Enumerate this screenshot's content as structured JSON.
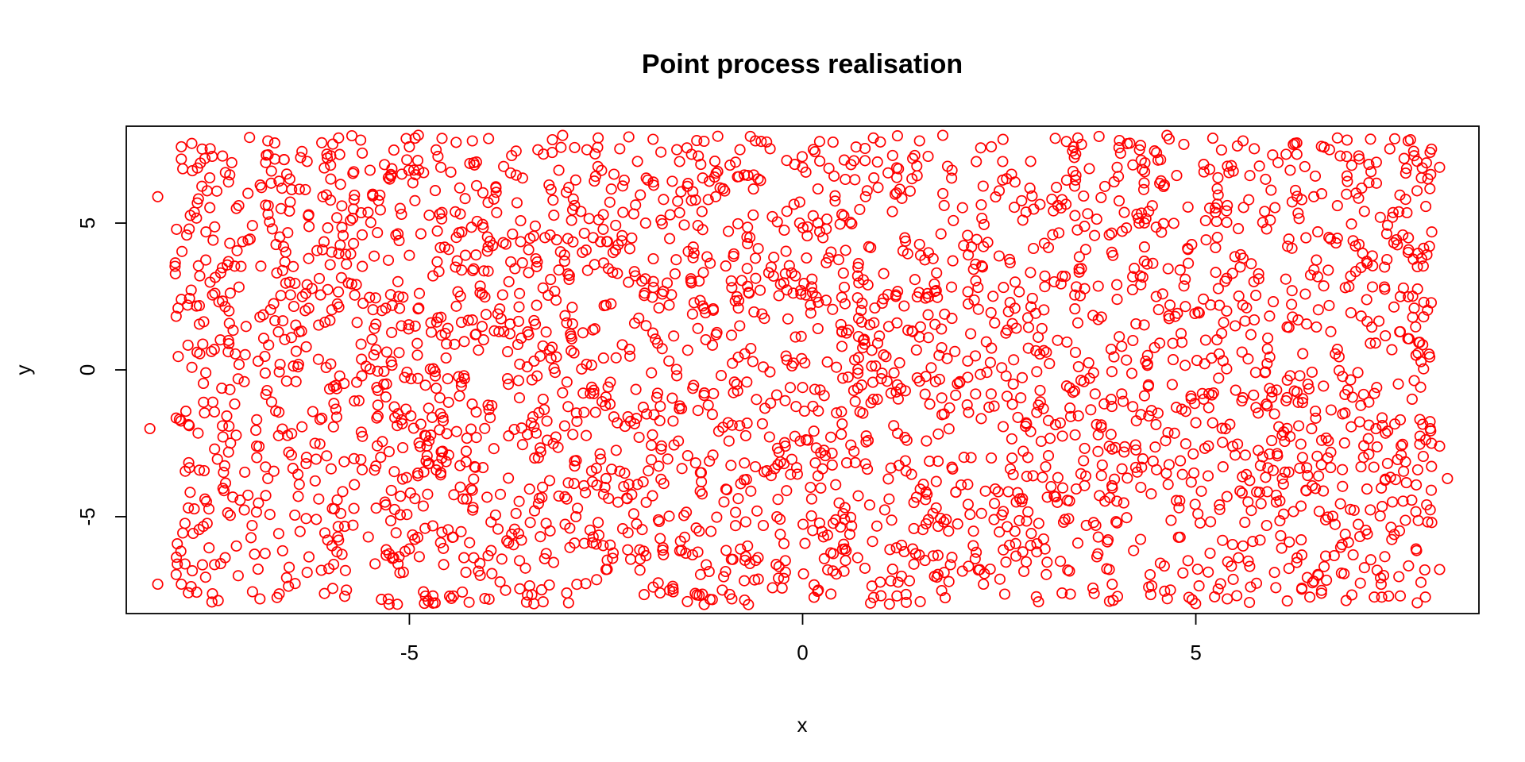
{
  "chart_data": {
    "type": "scatter",
    "title": "Point process realisation",
    "xlabel": "x",
    "ylabel": "y",
    "xlim": [
      -8.6,
      8.6
    ],
    "ylim": [
      -8.3,
      8.3
    ],
    "xticks": [
      -5,
      0,
      5
    ],
    "yticks": [
      -5,
      0,
      5
    ],
    "xtick_labels": [
      "-5",
      "0",
      "5"
    ],
    "ytick_labels": [
      "-5",
      "0",
      "5"
    ],
    "grid": false,
    "legend": "none",
    "marker": "open-circle",
    "point_color": "#ff0000",
    "domain": {
      "x": [
        -8,
        8
      ],
      "y": [
        -8,
        8
      ]
    },
    "series": [
      {
        "points": [
          [
            -7.9,
            7.6
          ],
          [
            -7.6,
            7.2
          ],
          [
            -7.3,
            6.4
          ],
          [
            -6.8,
            7.8
          ],
          [
            -6.3,
            7.1
          ],
          [
            -5.9,
            7.9
          ],
          [
            -5.5,
            6.8
          ],
          [
            -5.0,
            7.6
          ],
          [
            -4.6,
            6.9
          ],
          [
            -4.2,
            7.8
          ],
          [
            -3.7,
            7.3
          ],
          [
            -3.1,
            6.8
          ],
          [
            -2.6,
            7.9
          ],
          [
            -2.1,
            7.1
          ],
          [
            -1.6,
            7.5
          ],
          [
            -1.1,
            6.7
          ],
          [
            -0.6,
            7.8
          ],
          [
            -0.1,
            7.0
          ],
          [
            0.4,
            6.6
          ],
          [
            0.9,
            7.9
          ],
          [
            1.4,
            7.2
          ],
          [
            1.9,
            6.8
          ],
          [
            2.4,
            7.6
          ],
          [
            2.9,
            7.1
          ],
          [
            3.5,
            7.9
          ],
          [
            4.0,
            6.9
          ],
          [
            4.5,
            7.4
          ],
          [
            5.1,
            7.0
          ],
          [
            5.6,
            7.8
          ],
          [
            6.2,
            6.8
          ],
          [
            6.7,
            7.5
          ],
          [
            7.2,
            7.0
          ],
          [
            7.7,
            7.8
          ],
          [
            8.1,
            6.9
          ],
          [
            -7.8,
            4.8
          ],
          [
            -7.2,
            5.5
          ],
          [
            -6.6,
            4.2
          ],
          [
            -6.1,
            5.9
          ],
          [
            -5.6,
            4.6
          ],
          [
            -5.1,
            5.3
          ],
          [
            -4.5,
            4.1
          ],
          [
            -4.0,
            5.7
          ],
          [
            -3.4,
            4.9
          ],
          [
            -2.9,
            5.6
          ],
          [
            -2.3,
            4.4
          ],
          [
            -1.8,
            5.1
          ],
          [
            -1.2,
            5.8
          ],
          [
            -0.7,
            4.3
          ],
          [
            -0.2,
            5.4
          ],
          [
            0.3,
            4.8
          ],
          [
            0.8,
            5.9
          ],
          [
            1.3,
            4.5
          ],
          [
            1.8,
            5.6
          ],
          [
            2.3,
            4.2
          ],
          [
            2.8,
            5.1
          ],
          [
            3.3,
            5.8
          ],
          [
            3.9,
            4.6
          ],
          [
            4.4,
            5.4
          ],
          [
            4.9,
            4.1
          ],
          [
            5.4,
            5.6
          ],
          [
            5.9,
            4.8
          ],
          [
            6.5,
            5.9
          ],
          [
            7.0,
            4.4
          ],
          [
            7.5,
            5.2
          ],
          [
            8.0,
            4.7
          ],
          [
            -7.9,
            2.4
          ],
          [
            -7.4,
            3.3
          ],
          [
            -6.9,
            1.8
          ],
          [
            -6.3,
            2.9
          ],
          [
            -5.8,
            3.6
          ],
          [
            -5.3,
            2.1
          ],
          [
            -4.7,
            3.2
          ],
          [
            -4.2,
            1.7
          ],
          [
            -3.6,
            2.6
          ],
          [
            -3.1,
            3.4
          ],
          [
            -2.5,
            2.2
          ],
          [
            -2.0,
            3.1
          ],
          [
            -1.4,
            1.9
          ],
          [
            -0.9,
            2.8
          ],
          [
            -0.4,
            3.5
          ],
          [
            0.2,
            2.3
          ],
          [
            0.7,
            3.2
          ],
          [
            1.2,
            1.6
          ],
          [
            1.7,
            2.7
          ],
          [
            2.2,
            3.6
          ],
          [
            2.7,
            2.1
          ],
          [
            3.2,
            3.0
          ],
          [
            3.8,
            1.8
          ],
          [
            4.3,
            2.9
          ],
          [
            4.8,
            3.4
          ],
          [
            5.3,
            2.2
          ],
          [
            5.8,
            3.1
          ],
          [
            6.3,
            1.7
          ],
          [
            6.9,
            2.8
          ],
          [
            7.4,
            3.5
          ],
          [
            7.9,
            2.3
          ],
          [
            -7.7,
            0.6
          ],
          [
            -7.1,
            -0.4
          ],
          [
            -6.5,
            1.1
          ],
          [
            -6.0,
            0.2
          ],
          [
            -5.4,
            -0.7
          ],
          [
            -4.9,
            0.9
          ],
          [
            -4.3,
            -0.3
          ],
          [
            -3.8,
            1.3
          ],
          [
            -3.2,
            0.4
          ],
          [
            -2.7,
            -0.8
          ],
          [
            -2.2,
            0.7
          ],
          [
            -1.6,
            -0.2
          ],
          [
            -1.1,
            1.2
          ],
          [
            -0.5,
            0.1
          ],
          [
            0.0,
            -0.6
          ],
          [
            0.5,
            0.8
          ],
          [
            1.0,
            -0.3
          ],
          [
            1.6,
            1.1
          ],
          [
            2.1,
            0.3
          ],
          [
            2.6,
            -0.9
          ],
          [
            3.1,
            0.6
          ],
          [
            3.7,
            -0.1
          ],
          [
            4.2,
            1.0
          ],
          [
            4.7,
            -0.5
          ],
          [
            5.2,
            0.4
          ],
          [
            5.7,
            1.2
          ],
          [
            6.2,
            -0.2
          ],
          [
            6.8,
            0.7
          ],
          [
            7.3,
            -0.6
          ],
          [
            7.8,
            0.5
          ],
          [
            -7.8,
            -1.9
          ],
          [
            -7.3,
            -2.8
          ],
          [
            -6.7,
            -1.4
          ],
          [
            -6.2,
            -2.5
          ],
          [
            -5.6,
            -3.4
          ],
          [
            -5.1,
            -1.7
          ],
          [
            -4.5,
            -2.9
          ],
          [
            -4.0,
            -1.2
          ],
          [
            -3.5,
            -2.2
          ],
          [
            -2.9,
            -3.1
          ],
          [
            -2.4,
            -1.6
          ],
          [
            -1.8,
            -2.7
          ],
          [
            -1.3,
            -3.5
          ],
          [
            -0.8,
            -1.9
          ],
          [
            -0.3,
            -2.8
          ],
          [
            0.2,
            -1.4
          ],
          [
            0.8,
            -3.2
          ],
          [
            1.3,
            -2.3
          ],
          [
            1.8,
            -1.5
          ],
          [
            2.4,
            -3.0
          ],
          [
            2.9,
            -2.1
          ],
          [
            3.4,
            -1.3
          ],
          [
            3.9,
            -2.6
          ],
          [
            4.5,
            -3.4
          ],
          [
            5.0,
            -1.8
          ],
          [
            5.5,
            -2.9
          ],
          [
            6.0,
            -1.5
          ],
          [
            6.6,
            -2.4
          ],
          [
            7.1,
            -3.3
          ],
          [
            7.6,
            -1.7
          ],
          [
            8.1,
            -2.6
          ],
          [
            -7.6,
            -4.4
          ],
          [
            -7.0,
            -5.3
          ],
          [
            -6.4,
            -3.9
          ],
          [
            -5.9,
            -5.8
          ],
          [
            -5.3,
            -4.6
          ],
          [
            -4.8,
            -5.4
          ],
          [
            -4.2,
            -4.1
          ],
          [
            -3.7,
            -5.6
          ],
          [
            -3.1,
            -4.3
          ],
          [
            -2.6,
            -5.2
          ],
          [
            -2.1,
            -3.9
          ],
          [
            -1.5,
            -5.7
          ],
          [
            -1.0,
            -4.5
          ],
          [
            -0.5,
            -5.3
          ],
          [
            0.1,
            -4.0
          ],
          [
            0.6,
            -5.6
          ],
          [
            1.1,
            -4.4
          ],
          [
            1.6,
            -5.1
          ],
          [
            2.1,
            -3.9
          ],
          [
            2.7,
            -5.5
          ],
          [
            3.2,
            -4.3
          ],
          [
            3.7,
            -5.2
          ],
          [
            4.3,
            -4.0
          ],
          [
            4.8,
            -5.7
          ],
          [
            5.3,
            -4.6
          ],
          [
            5.9,
            -5.3
          ],
          [
            6.4,
            -4.1
          ],
          [
            6.9,
            -5.6
          ],
          [
            7.5,
            -4.5
          ],
          [
            8.0,
            -5.2
          ],
          [
            -7.9,
            -7.3
          ],
          [
            -7.4,
            -6.6
          ],
          [
            -6.9,
            -7.8
          ],
          [
            -6.3,
            -6.9
          ],
          [
            -5.8,
            -7.5
          ],
          [
            -5.2,
            -6.4
          ],
          [
            -4.7,
            -7.7
          ],
          [
            -4.1,
            -7.0
          ],
          [
            -3.6,
            -6.5
          ],
          [
            -3.0,
            -7.6
          ],
          [
            -2.5,
            -6.8
          ],
          [
            -1.9,
            -7.4
          ],
          [
            -1.4,
            -6.3
          ],
          [
            -0.9,
            -7.8
          ],
          [
            -0.3,
            -6.7
          ],
          [
            0.2,
            -7.5
          ],
          [
            0.7,
            -6.4
          ],
          [
            1.2,
            -7.7
          ],
          [
            1.8,
            -6.9
          ],
          [
            2.3,
            -7.3
          ],
          [
            2.8,
            -6.2
          ],
          [
            3.3,
            -7.6
          ],
          [
            3.9,
            -6.8
          ],
          [
            4.4,
            -7.4
          ],
          [
            4.9,
            -6.5
          ],
          [
            5.4,
            -7.8
          ],
          [
            6.0,
            -6.9
          ],
          [
            6.5,
            -7.2
          ],
          [
            7.0,
            -6.3
          ],
          [
            7.6,
            -7.7
          ],
          [
            8.1,
            -6.8
          ],
          [
            -8.2,
            5.9
          ],
          [
            -8.3,
            -2.0
          ],
          [
            -8.2,
            -7.3
          ],
          [
            -6.0,
            6.5
          ],
          [
            -3.9,
            6.2
          ],
          [
            -1.9,
            6.4
          ],
          [
            0.5,
            5.3
          ],
          [
            2.5,
            6.1
          ],
          [
            4.6,
            6.3
          ],
          [
            6.6,
            6.0
          ],
          [
            -5.0,
            3.9
          ],
          [
            -2.8,
            4.0
          ],
          [
            -0.6,
            3.8
          ],
          [
            1.5,
            3.9
          ],
          [
            3.6,
            4.1
          ],
          [
            5.6,
            3.8
          ],
          [
            7.7,
            4.0
          ],
          [
            -7.3,
            1.0
          ],
          [
            -5.1,
            1.5
          ],
          [
            -3.0,
            1.6
          ],
          [
            -0.8,
            1.5
          ],
          [
            1.4,
            1.3
          ],
          [
            3.5,
            1.6
          ],
          [
            5.5,
            1.5
          ],
          [
            7.6,
            1.3
          ],
          [
            -7.5,
            -1.1
          ],
          [
            -5.4,
            -1.2
          ],
          [
            -3.3,
            -1.0
          ],
          [
            -1.2,
            -1.2
          ],
          [
            0.9,
            -1.0
          ],
          [
            3.0,
            -1.2
          ],
          [
            5.1,
            -1.0
          ],
          [
            7.2,
            -1.1
          ],
          [
            -6.8,
            -3.7
          ],
          [
            -4.6,
            -3.5
          ],
          [
            -2.5,
            -3.7
          ],
          [
            -0.4,
            -3.6
          ],
          [
            1.7,
            -3.8
          ],
          [
            3.8,
            -3.6
          ],
          [
            6.1,
            -3.7
          ],
          [
            8.2,
            -3.7
          ],
          [
            -7.2,
            -6.0
          ],
          [
            -5.0,
            -6.1
          ],
          [
            -2.9,
            -5.9
          ],
          [
            -0.7,
            -6.0
          ],
          [
            1.4,
            -6.1
          ],
          [
            3.5,
            -5.9
          ],
          [
            5.6,
            -6.0
          ],
          [
            7.8,
            -6.1
          ],
          [
            -1.7,
            0.3
          ],
          [
            2.0,
            -0.4
          ],
          [
            4.0,
            2.4
          ],
          [
            -4.4,
            -2.1
          ],
          [
            6.4,
            4.5
          ],
          [
            -6.5,
            -2.9
          ],
          [
            0.0,
            6.9
          ],
          [
            3.0,
            -7.9
          ],
          [
            -3.3,
            -7.9
          ],
          [
            6.8,
            7.9
          ]
        ]
      }
    ]
  }
}
